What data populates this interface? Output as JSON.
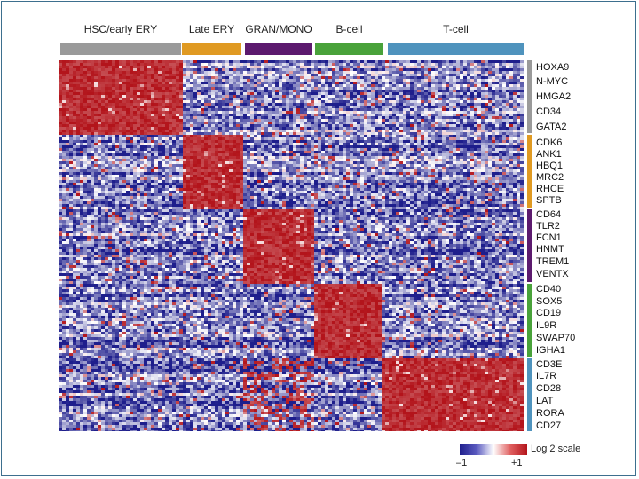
{
  "chart_data": {
    "type": "heatmap",
    "column_groups": [
      {
        "label": "HSC/early ERY",
        "color": "#9a9a9a"
      },
      {
        "label": "Late ERY",
        "color": "#e09a22"
      },
      {
        "label": "GRAN/MONO",
        "color": "#5c1a6e"
      },
      {
        "label": "B-cell",
        "color": "#49a23a"
      },
      {
        "label": "T-cell",
        "color": "#4f93bd"
      }
    ],
    "row_groups": [
      {
        "color": "#9a9a9a",
        "genes": [
          "HOXA9",
          "N-MYC",
          "HMGA2",
          "CD34",
          "GATA2"
        ],
        "high_in": "HSC/early ERY"
      },
      {
        "color": "#e09a22",
        "genes": [
          "CDK6",
          "ANK1",
          "HBQ1",
          "MRC2",
          "RHCE",
          "SPTB"
        ],
        "high_in": "Late ERY"
      },
      {
        "color": "#5c1a6e",
        "genes": [
          "CD64",
          "TLR2",
          "FCN1",
          "HNMT",
          "TREM1",
          "VENTX"
        ],
        "high_in": "GRAN/MONO"
      },
      {
        "color": "#49a23a",
        "genes": [
          "CD40",
          "SOX5",
          "CD19",
          "IL9R",
          "SWAP70",
          "IGHA1"
        ],
        "high_in": "B-cell"
      },
      {
        "color": "#4f93bd",
        "genes": [
          "CD3E",
          "IL7R",
          "CD28",
          "LAT",
          "RORA",
          "CD27"
        ],
        "high_in": "T-cell"
      }
    ],
    "color_scale": {
      "label": "Log 2 scale",
      "min_label": "–1",
      "max_label": "+1",
      "min": -1,
      "max": 1,
      "low_color": "#1e1e8c",
      "mid_color": "#ffffff",
      "high_color": "#b3141b"
    }
  }
}
